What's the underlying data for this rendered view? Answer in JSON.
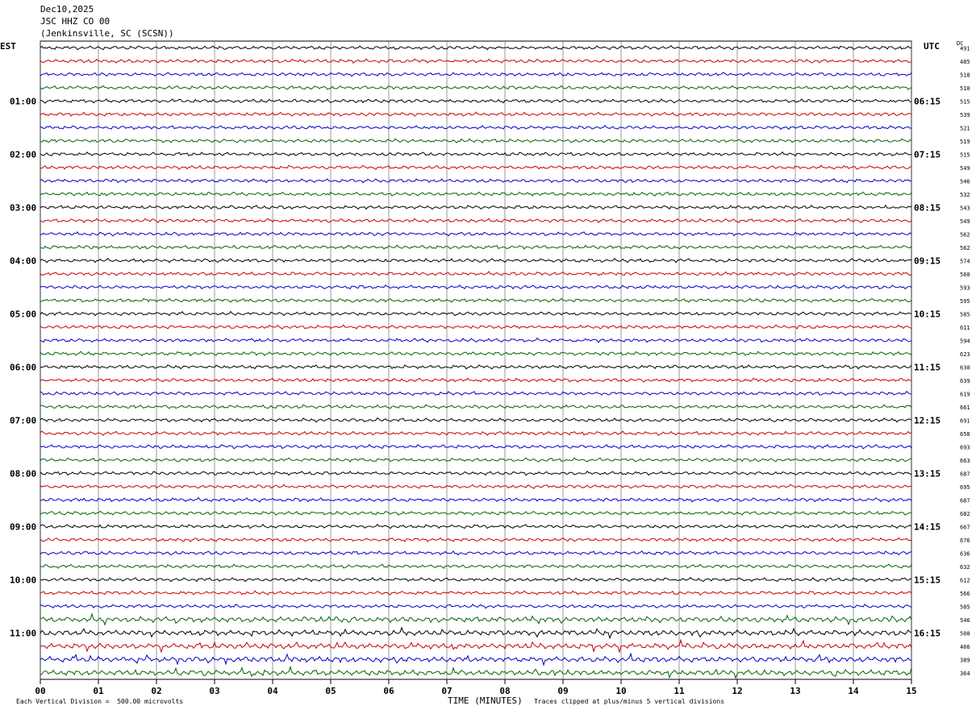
{
  "header": {
    "date": "Dec10,2025",
    "station": "JSC HHZ CO 00",
    "location": "(Jenkinsville, SC (SCSN))"
  },
  "labels": {
    "left_zone": "EST",
    "right_zone": "UTC",
    "dc_header": "DC",
    "xlabel": "TIME (MINUTES)",
    "scale_note": "Each Vertical Division =  500.00 microvolts",
    "clip_note": "Traces clipped at plus/minus 5 vertical divisions"
  },
  "chart_data": {
    "type": "line",
    "xlabel": "TIME (MINUTES)",
    "x_ticks": [
      "00",
      "01",
      "02",
      "03",
      "04",
      "05",
      "06",
      "07",
      "08",
      "09",
      "10",
      "11",
      "12",
      "13",
      "14",
      "15"
    ],
    "xlim": [
      0,
      15
    ],
    "est_hour_labels": [
      "01:00",
      "02:00",
      "03:00",
      "04:00",
      "05:00",
      "06:00",
      "07:00",
      "08:00",
      "09:00",
      "10:00",
      "11:00"
    ],
    "utc_hour_labels": [
      "06:15",
      "07:15",
      "08:15",
      "09:15",
      "10:15",
      "11:15",
      "12:15",
      "13:15",
      "14:15",
      "15:15",
      "16:15"
    ],
    "trace_colors": [
      "#000000",
      "#cc0000",
      "#0000cc",
      "#006600"
    ],
    "dc_offsets": [
      491,
      485,
      518,
      510,
      515,
      539,
      521,
      519,
      515,
      549,
      546,
      532,
      543,
      549,
      562,
      562,
      574,
      560,
      593,
      595,
      585,
      611,
      594,
      623,
      630,
      639,
      619,
      661,
      691,
      658,
      693,
      663,
      687,
      695,
      687,
      682,
      667,
      676,
      636,
      632,
      612,
      566,
      585,
      546,
      508,
      466,
      389,
      364
    ],
    "trace_count": 48,
    "grid": true
  }
}
